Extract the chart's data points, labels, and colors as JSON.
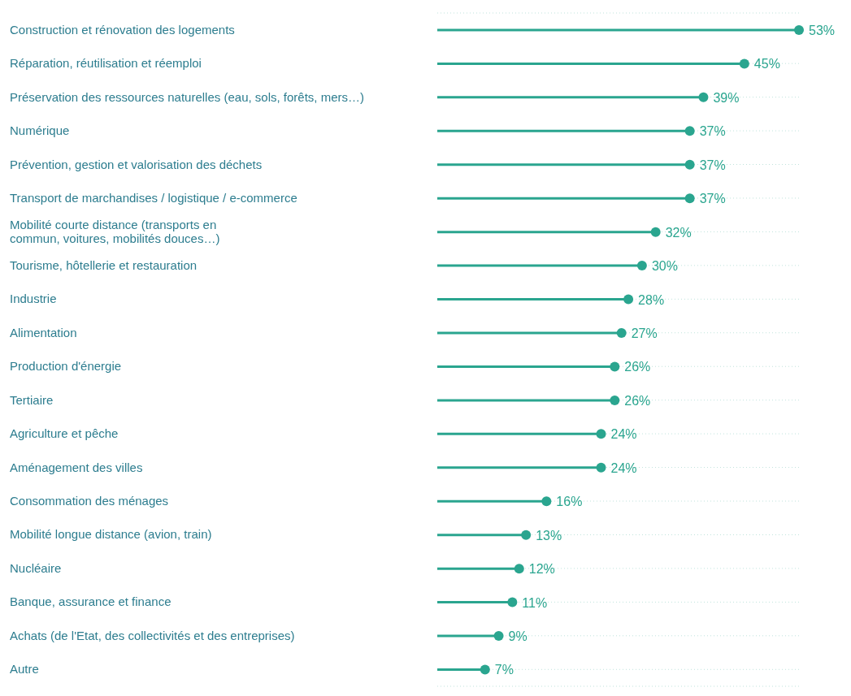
{
  "chart_data": {
    "type": "lollipop",
    "orientation": "horizontal",
    "categories": [
      "Construction et rénovation des logements",
      "Réparation, réutilisation et réemploi",
      "Préservation des ressources naturelles (eau, sols, forêts, mers…)",
      "Numérique",
      "Prévention, gestion et valorisation des déchets",
      "Transport de marchandises / logistique / e-commerce",
      "Mobilité courte distance (transports en commun, voitures, mobilités douces…)",
      "Tourisme, hôtellerie et restauration",
      "Industrie",
      "Alimentation",
      "Production d'énergie",
      "Tertiaire",
      "Agriculture et pêche",
      "Aménagement des villes",
      "Consommation des ménages",
      "Mobilité longue distance (avion, train)",
      "Nucléaire",
      "Banque, assurance et finance",
      "Achats (de l'Etat, des collectivités et des entreprises)",
      "Autre"
    ],
    "values": [
      53,
      45,
      39,
      37,
      37,
      37,
      32,
      30,
      28,
      27,
      26,
      26,
      24,
      24,
      16,
      13,
      12,
      11,
      9,
      7
    ],
    "value_labels": [
      "53%",
      "45%",
      "39%",
      "37%",
      "37%",
      "37%",
      "32%",
      "30%",
      "28%",
      "27%",
      "26%",
      "26%",
      "24%",
      "24%",
      "16%",
      "13%",
      "12%",
      "11%",
      "9%",
      "7%"
    ],
    "color": "#2aa58f",
    "tick_labels": "y",
    "grid": "y",
    "marker": "circle"
  }
}
